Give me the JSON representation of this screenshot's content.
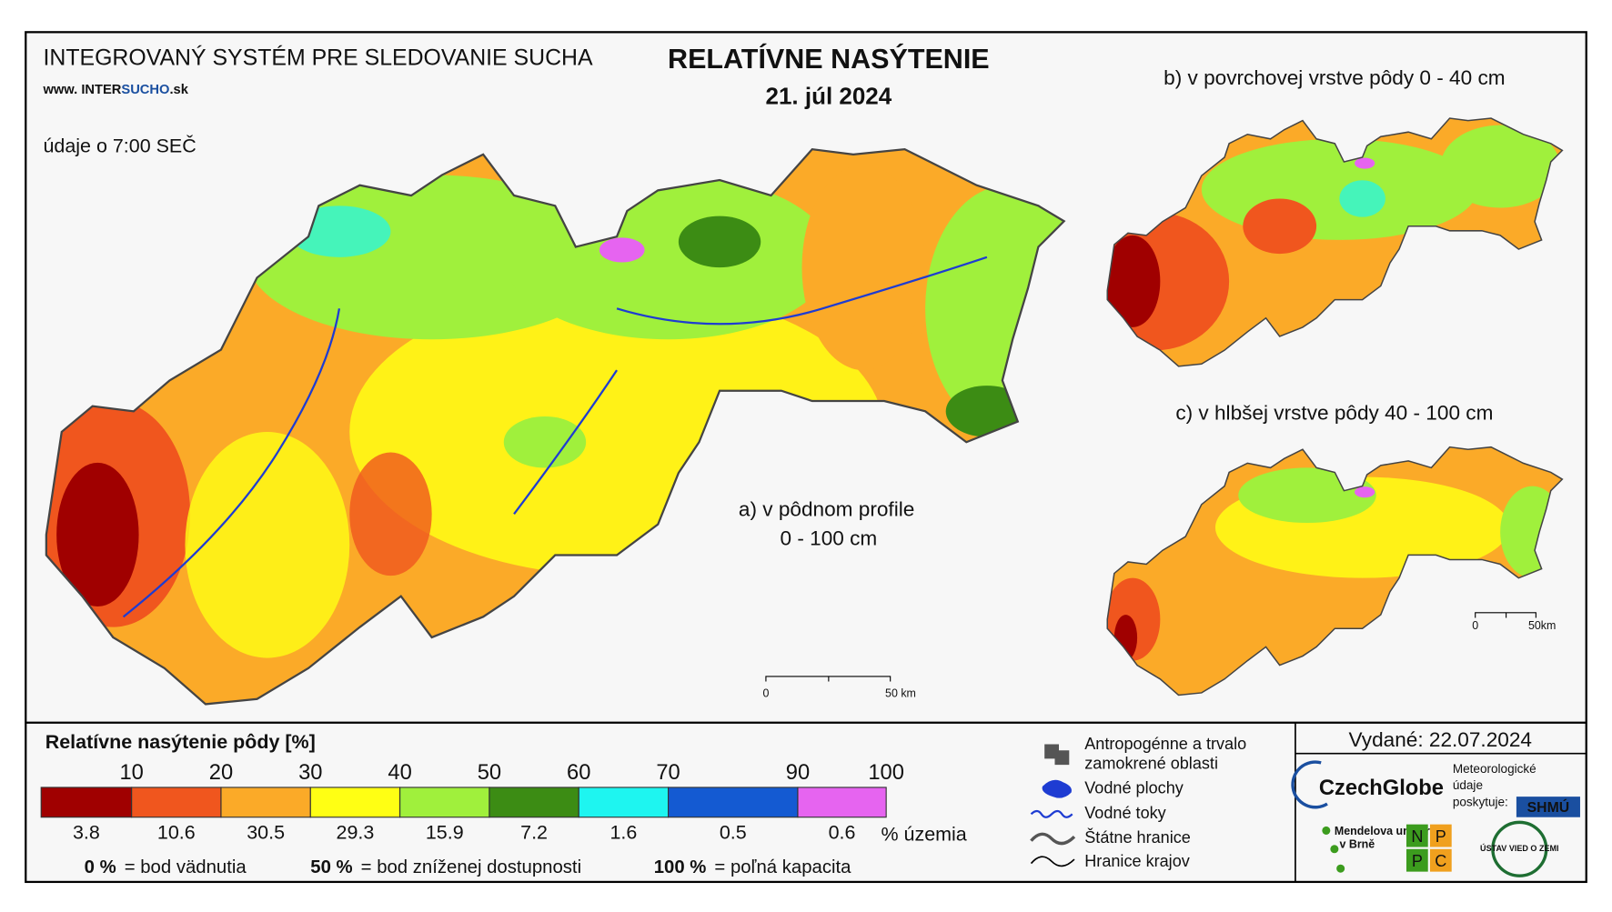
{
  "header": {
    "system_title": "INTEGROVANÝ SYSTÉM PRE SLEDOVANIE SUCHA",
    "website_prefix": "www. INTER",
    "website_brand": "SUCHO",
    "website_suffix": ".sk",
    "time_note": "údaje o 7:00 SEČ",
    "title": "RELATÍVNE NASÝTENIE",
    "date": "21. júl 2024"
  },
  "maps": [
    {
      "label": "a) v pôdnom profile",
      "label_line2": "0 - 100 cm",
      "scale_start": "0",
      "scale_end": "50 km"
    },
    {
      "label": "b) v povrchovej vrstve pôdy 0 - 40 cm"
    },
    {
      "label": "c) v hlbšej vrstve pôdy 40 - 100 cm",
      "scale_start": "0",
      "scale_end": "50km"
    }
  ],
  "legend": {
    "title": "Relatívne nasýtenie pôdy [%]",
    "thresholds": [
      10,
      20,
      30,
      40,
      50,
      60,
      70,
      90,
      100
    ],
    "classes": [
      {
        "color": "#a00000",
        "share": 3.8
      },
      {
        "color": "#f0561e",
        "share": 10.6
      },
      {
        "color": "#fbaa28",
        "share": 30.5
      },
      {
        "color": "#ffff14",
        "share": 29.3
      },
      {
        "color": "#a0f03c",
        "share": 15.9
      },
      {
        "color": "#3c8c14",
        "share": 7.2
      },
      {
        "color": "#1ef5f0",
        "share": 1.6
      },
      {
        "color": "#145ad2",
        "share": 0.5
      },
      {
        "color": "#e664f0",
        "share": 0.6
      }
    ],
    "share_unit": "% územia",
    "notes": [
      {
        "value": "0 %",
        "text": "= bod vädnutia"
      },
      {
        "value": "50 %",
        "text": "= bod zníženej dostupnosti"
      },
      {
        "value": "100 %",
        "text": "= poľná kapacita"
      }
    ]
  },
  "symbols": [
    "Antropogénne a trvalo zamokrené oblasti",
    "Vodné plochy",
    "Vodné toky",
    "Štátne hranice",
    "Hranice krajov"
  ],
  "issued": "Vydané: 22.07.2024",
  "logos": {
    "czechglobe": "CzechGlobe",
    "meteo_note": "Meteorologické údaje poskytuje:",
    "shmu": "SHMÚ",
    "mendel": "Mendelova univerzita v Brně",
    "nppc": [
      "N",
      "P",
      "P",
      "C"
    ],
    "uvz": "ÚSTAV VIED O ZEMI"
  }
}
